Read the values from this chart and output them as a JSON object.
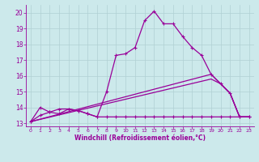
{
  "xlabel": "Windchill (Refroidissement éolien,°C)",
  "background_color": "#cce9eb",
  "line_color": "#990099",
  "grid_color": "#b0d0d4",
  "xlim": [
    -0.5,
    23.5
  ],
  "ylim": [
    12.8,
    20.5
  ],
  "xticks": [
    0,
    1,
    2,
    3,
    4,
    5,
    6,
    7,
    8,
    9,
    10,
    11,
    12,
    13,
    14,
    15,
    16,
    17,
    18,
    19,
    20,
    21,
    22,
    23
  ],
  "yticks": [
    13,
    14,
    15,
    16,
    17,
    18,
    19,
    20
  ],
  "line1_x": [
    0,
    1,
    2,
    3,
    4,
    5,
    6,
    7,
    8,
    9,
    10,
    11,
    12,
    13,
    14,
    15,
    16,
    17,
    18,
    19,
    20,
    21,
    22,
    23
  ],
  "line1_y": [
    13.1,
    14.0,
    13.7,
    13.6,
    13.9,
    13.8,
    13.6,
    13.4,
    15.0,
    17.3,
    17.4,
    17.8,
    19.5,
    20.1,
    19.3,
    19.3,
    18.5,
    17.8,
    17.3,
    16.1,
    15.5,
    14.9,
    13.4,
    13.4
  ],
  "line2_x": [
    0,
    1,
    2,
    3,
    4,
    5,
    6,
    7,
    8,
    9,
    10,
    11,
    12,
    13,
    14,
    15,
    16,
    17,
    18,
    19,
    20,
    21,
    22,
    23
  ],
  "line2_y": [
    13.1,
    13.5,
    13.7,
    13.9,
    13.9,
    13.8,
    13.6,
    13.4,
    13.4,
    13.4,
    13.4,
    13.4,
    13.4,
    13.4,
    13.4,
    13.4,
    13.4,
    13.4,
    13.4,
    13.4,
    13.4,
    13.4,
    13.4,
    13.4
  ],
  "line3_x": [
    0,
    19,
    20,
    21,
    22,
    23
  ],
  "line3_y": [
    13.1,
    15.8,
    15.5,
    14.9,
    13.4,
    13.4
  ],
  "line4_x": [
    0,
    19,
    20,
    21,
    22,
    23
  ],
  "line4_y": [
    13.1,
    16.1,
    15.5,
    14.9,
    13.4,
    13.4
  ]
}
